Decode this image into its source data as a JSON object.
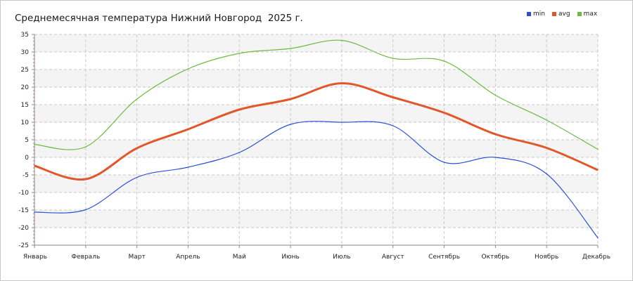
{
  "chart_data": {
    "type": "line",
    "title": "Среднемесячная температура Нижний Новгород  2025 г.",
    "categories": [
      "Январь",
      "Февраль",
      "Март",
      "Апрель",
      "Май",
      "Июнь",
      "Июль",
      "Август",
      "Сентябрь",
      "Октябрь",
      "Ноябрь",
      "Декабрь"
    ],
    "series": [
      {
        "name": "min",
        "color": "#2a50d8",
        "values": [
          -15.6,
          -14.9,
          -5.7,
          -2.8,
          1.4,
          9.4,
          10.0,
          9.0,
          -1.4,
          0.0,
          -4.7,
          -22.9
        ]
      },
      {
        "name": "avg",
        "color": "#e0582a",
        "values": [
          -2.4,
          -6.2,
          2.6,
          8.0,
          13.6,
          16.6,
          21.1,
          17.1,
          12.7,
          6.6,
          2.7,
          -3.6
        ]
      },
      {
        "name": "max",
        "color": "#6bbb3f",
        "values": [
          3.7,
          3.0,
          16.6,
          25.2,
          29.6,
          31.0,
          33.3,
          28.2,
          27.4,
          17.7,
          10.6,
          2.3
        ]
      }
    ],
    "yticks": [
      35,
      30,
      25,
      20,
      15,
      10,
      5,
      0,
      -5,
      -10,
      -15,
      -20,
      -25
    ],
    "ylim": [
      -25,
      35
    ],
    "grid": true,
    "legend_position": "top-right"
  }
}
